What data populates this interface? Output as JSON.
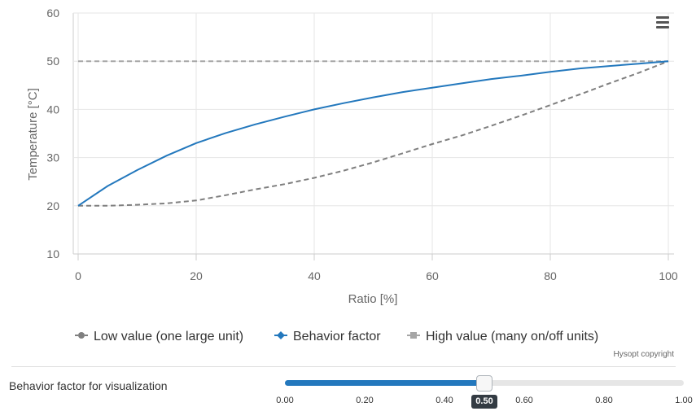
{
  "chart_data": {
    "type": "line",
    "title": "",
    "xlabel": "Ratio [%]",
    "ylabel": "Temperature [°C]",
    "xlim": [
      0,
      100
    ],
    "ylim": [
      10,
      60
    ],
    "x_ticks": [
      0,
      20,
      40,
      60,
      80,
      100
    ],
    "y_ticks": [
      10,
      20,
      30,
      40,
      50,
      60
    ],
    "grid": true,
    "legend_position": "bottom-center",
    "x": [
      0,
      5,
      10,
      15,
      20,
      25,
      30,
      35,
      40,
      45,
      50,
      55,
      60,
      65,
      70,
      75,
      80,
      85,
      90,
      95,
      100
    ],
    "series": [
      {
        "name": "Low value (one large unit)",
        "style": "dashed",
        "marker": "circle",
        "color": "#7f7f7f",
        "values": [
          20.0,
          20.0,
          20.2,
          20.5,
          21.1,
          22.2,
          23.4,
          24.5,
          25.8,
          27.3,
          29.0,
          30.9,
          32.8,
          34.6,
          36.6,
          38.7,
          40.9,
          43.1,
          45.4,
          47.6,
          50.0
        ]
      },
      {
        "name": "Behavior factor",
        "style": "solid",
        "marker": "diamond",
        "color": "#2378bd",
        "values": [
          20.0,
          24.1,
          27.4,
          30.4,
          33.0,
          35.1,
          36.9,
          38.5,
          40.0,
          41.3,
          42.5,
          43.6,
          44.5,
          45.4,
          46.3,
          47.0,
          47.8,
          48.5,
          49.0,
          49.5,
          50.0
        ]
      },
      {
        "name": "High value (many on/off units)",
        "style": "dashed",
        "marker": "square",
        "color": "#a6a6a6",
        "values": [
          50,
          50,
          50,
          50,
          50,
          50,
          50,
          50,
          50,
          50,
          50,
          50,
          50,
          50,
          50,
          50,
          50,
          50,
          50,
          50,
          50
        ]
      }
    ]
  },
  "copyright": "Hysopt copyright",
  "menu_icon": "hamburger-menu-icon",
  "slider": {
    "label": "Behavior factor for visualization",
    "min": 0,
    "max": 1,
    "value": 0.5,
    "value_label": "0.50",
    "ticks": [
      "0.00",
      "0.20",
      "0.40",
      "0.60",
      "0.80",
      "1.00"
    ]
  }
}
